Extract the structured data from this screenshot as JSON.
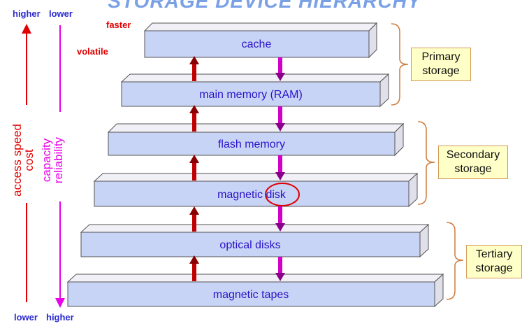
{
  "title": "STORAGE DEVICE HIERARCHY",
  "corners": {
    "top_left": "higher",
    "top_right": "lower",
    "bottom_left": "lower",
    "bottom_right": "higher"
  },
  "side_labels": {
    "faster": "faster",
    "volatile": "volatile"
  },
  "axes": {
    "left_line1": "access speed",
    "left_line2": "cost",
    "right_line1": "capacity",
    "right_line2": "reliability"
  },
  "levels": [
    "cache",
    "main memory (RAM)",
    "flash memory",
    "magnetic disk",
    "optical disks",
    "magnetic tapes"
  ],
  "groups": [
    {
      "line1": "Primary",
      "line2": "storage"
    },
    {
      "line1": "Secondary",
      "line2": "storage"
    },
    {
      "line1": "Tertiary",
      "line2": "storage"
    }
  ],
  "colors": {
    "slab_front": "#c8d4f6",
    "slab_side": "#e4e4ec",
    "slab_label": "#2a12c8",
    "up_arrow": "#c00000",
    "down_arrow": "#d000c8",
    "speed_axis": "#e00000",
    "capacity_axis": "#e800e8",
    "highlight": "#e00000"
  }
}
